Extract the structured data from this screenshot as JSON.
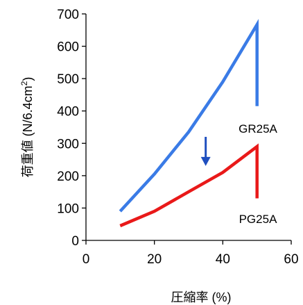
{
  "chart_data": {
    "type": "line",
    "xlabel": "圧縮率 (%)",
    "ylabel": "荷重値 (N/6.4cm²)",
    "ylabel_parts": {
      "main": "荷重値 (N/6.4cm",
      "sup": "2",
      "end": ")"
    },
    "xlim": [
      0,
      60
    ],
    "ylim": [
      0,
      700
    ],
    "xticks": [
      0,
      20,
      40,
      60
    ],
    "yticks": [
      0,
      100,
      200,
      300,
      400,
      500,
      600,
      700
    ],
    "grid": false,
    "legend": "none",
    "series": [
      {
        "name": "GR25A",
        "color": "#3a7be6",
        "x": [
          10,
          20,
          30,
          40,
          50,
          50
        ],
        "y": [
          90,
          205,
          335,
          490,
          667,
          415
        ]
      },
      {
        "name": "PG25A",
        "color": "#e91919",
        "x": [
          10,
          20,
          30,
          40,
          50,
          50
        ],
        "y": [
          45,
          90,
          150,
          210,
          290,
          130
        ]
      }
    ],
    "annotations": [
      {
        "type": "arrow",
        "direction": "down",
        "color": "#1f4fbf",
        "x": 35,
        "y_from": 320,
        "y_to": 230
      }
    ]
  }
}
